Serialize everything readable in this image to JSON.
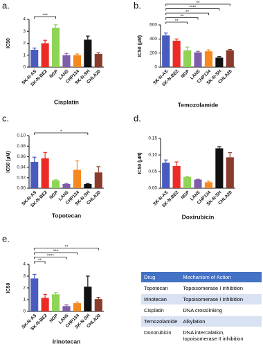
{
  "chart_data": [
    {
      "type": "bar",
      "label": "a.",
      "title": "Cisplatin",
      "ylabel": "IC50",
      "categories": [
        "SK-N-AS",
        "SK-N-BE2",
        "NGP",
        "LAN5",
        "CHP134",
        "SK-N-SH",
        "CHLA20"
      ],
      "values": [
        1.45,
        2.0,
        3.3,
        1.0,
        1.0,
        2.3,
        1.1
      ],
      "errors": [
        0.15,
        0.25,
        0.25,
        0.15,
        0.1,
        0.3,
        0.1
      ],
      "colors": [
        "#4a5bc0",
        "#ee2a24",
        "#8ed455",
        "#7d5ea8",
        "#f5891f",
        "#111111",
        "#8a3b2b"
      ],
      "ylim": [
        0,
        4
      ],
      "yticks": [
        0,
        1,
        2,
        3,
        4
      ],
      "significance": [
        {
          "from": "SK-N-AS",
          "to": "NGP",
          "label": "***"
        }
      ]
    },
    {
      "type": "bar",
      "label": "b.",
      "title": "Temozolamide",
      "ylabel": "IC50 (µM)",
      "categories": [
        "SK-N-AS",
        "SK-N-BE2",
        "NGP",
        "LAN5",
        "CHP134",
        "SK-N-SH",
        "CHLA20"
      ],
      "values": [
        450,
        375,
        240,
        210,
        225,
        135,
        240
      ],
      "errors": [
        35,
        25,
        45,
        15,
        20,
        15,
        10
      ],
      "colors": [
        "#4a5bc0",
        "#ee2a24",
        "#8ed455",
        "#7d5ea8",
        "#f5891f",
        "#111111",
        "#8a3b2b"
      ],
      "ylim": [
        0,
        600
      ],
      "yticks": [
        0,
        200,
        400,
        600
      ],
      "significance": [
        {
          "from": "SK-N-AS",
          "to": "NGP",
          "label": "**"
        },
        {
          "from": "SK-N-AS",
          "to": "LAN5",
          "label": "**"
        },
        {
          "from": "SK-N-AS",
          "to": "CHP134",
          "label": "**"
        },
        {
          "from": "SK-N-AS",
          "to": "SK-N-SH",
          "label": "****"
        },
        {
          "from": "SK-N-AS",
          "to": "CHLA20",
          "label": "**"
        }
      ]
    },
    {
      "type": "bar",
      "label": "c.",
      "title": "Topotecan",
      "ylabel": "IC50 (µM)",
      "categories": [
        "SK-N-AS",
        "SK-N-BE2",
        "NGP",
        "LAN5",
        "CHP134",
        "SK-N-SH",
        "CHLA20"
      ],
      "values": [
        0.05,
        0.057,
        0.015,
        0.008,
        0.035,
        0.008,
        0.03
      ],
      "errors": [
        0.009,
        0.011,
        0.001,
        0.001,
        0.017,
        0.001,
        0.011
      ],
      "colors": [
        "#4a5bc0",
        "#ee2a24",
        "#8ed455",
        "#7d5ea8",
        "#f5891f",
        "#111111",
        "#8a3b2b"
      ],
      "ylim": [
        0,
        0.1
      ],
      "yticks": [
        {
          "value": 0,
          "label": "0.00"
        },
        {
          "value": 0.02,
          "label": "0.02"
        },
        {
          "value": 0.04,
          "label": "0.04"
        },
        {
          "value": 0.06,
          "label": "0.06"
        },
        {
          "value": 0.08,
          "label": "0.08"
        },
        {
          "value": 0.1,
          "label": "0.10"
        }
      ],
      "significance": [
        {
          "from": "SK-N-AS",
          "to": "SK-N-SH",
          "label": "*"
        }
      ]
    },
    {
      "type": "bar",
      "label": "d.",
      "title": "Doxirubicin",
      "ylabel": "IC50 (µM)",
      "categories": [
        "SK-N-AS",
        "SK-N-BE2",
        "NGP",
        "LAN5",
        "CHP134",
        "SK-N-SH",
        "CHLA20"
      ],
      "values": [
        0.077,
        0.067,
        0.034,
        0.026,
        0.018,
        0.12,
        0.093
      ],
      "errors": [
        0.008,
        0.012,
        0.002,
        0.001,
        0.003,
        0.005,
        0.014
      ],
      "colors": [
        "#4a5bc0",
        "#ee2a24",
        "#8ed455",
        "#7d5ea8",
        "#f5891f",
        "#111111",
        "#8a3b2b"
      ],
      "ylim": [
        0,
        0.15
      ],
      "yticks": [
        {
          "value": 0,
          "label": "0.00"
        },
        {
          "value": 0.05,
          "label": "0.05"
        },
        {
          "value": 0.1,
          "label": "0.10"
        },
        {
          "value": 0.15,
          "label": "0.15"
        }
      ],
      "significance": []
    },
    {
      "type": "bar",
      "label": "e.",
      "title": "Irinotecan",
      "ylabel": "IC50",
      "categories": [
        "SK-N-AS",
        "SK-N-BE2",
        "NGP",
        "LAN5",
        "CHP134",
        "SK-N-SH",
        "CHLA20"
      ],
      "values": [
        2.8,
        1.15,
        1.45,
        0.45,
        0.7,
        2.1,
        1.05
      ],
      "errors": [
        0.35,
        0.3,
        0.15,
        0.1,
        0.1,
        0.9,
        0.15
      ],
      "colors": [
        "#4a5bc0",
        "#ee2a24",
        "#8ed455",
        "#7d5ea8",
        "#f5891f",
        "#111111",
        "#8a3b2b"
      ],
      "ylim": [
        0,
        4
      ],
      "yticks": [
        0,
        1,
        2,
        3,
        4
      ],
      "significance": [
        {
          "from": "SK-N-AS",
          "to": "SK-N-BE2",
          "label": "**"
        },
        {
          "from": "SK-N-AS",
          "to": "LAN5",
          "label": "****"
        },
        {
          "from": "SK-N-AS",
          "to": "CHP134",
          "label": "***"
        },
        {
          "from": "SK-N-AS",
          "to": "CHLA20",
          "label": "**"
        }
      ]
    }
  ],
  "table": {
    "header": [
      "Drug",
      "Mechanism of Action"
    ],
    "rows": [
      [
        "Topotecan",
        "Topoisomerase I inhibition"
      ],
      [
        "Irinotecan",
        "Topoisomerase I inhibition"
      ],
      [
        "Cisplatin",
        "DNA crosslinking"
      ],
      [
        "Temozolamide",
        "Alkylation"
      ],
      [
        "Doxorubicin",
        "DNA intercalation, topoisomerase II inhibition"
      ]
    ]
  }
}
